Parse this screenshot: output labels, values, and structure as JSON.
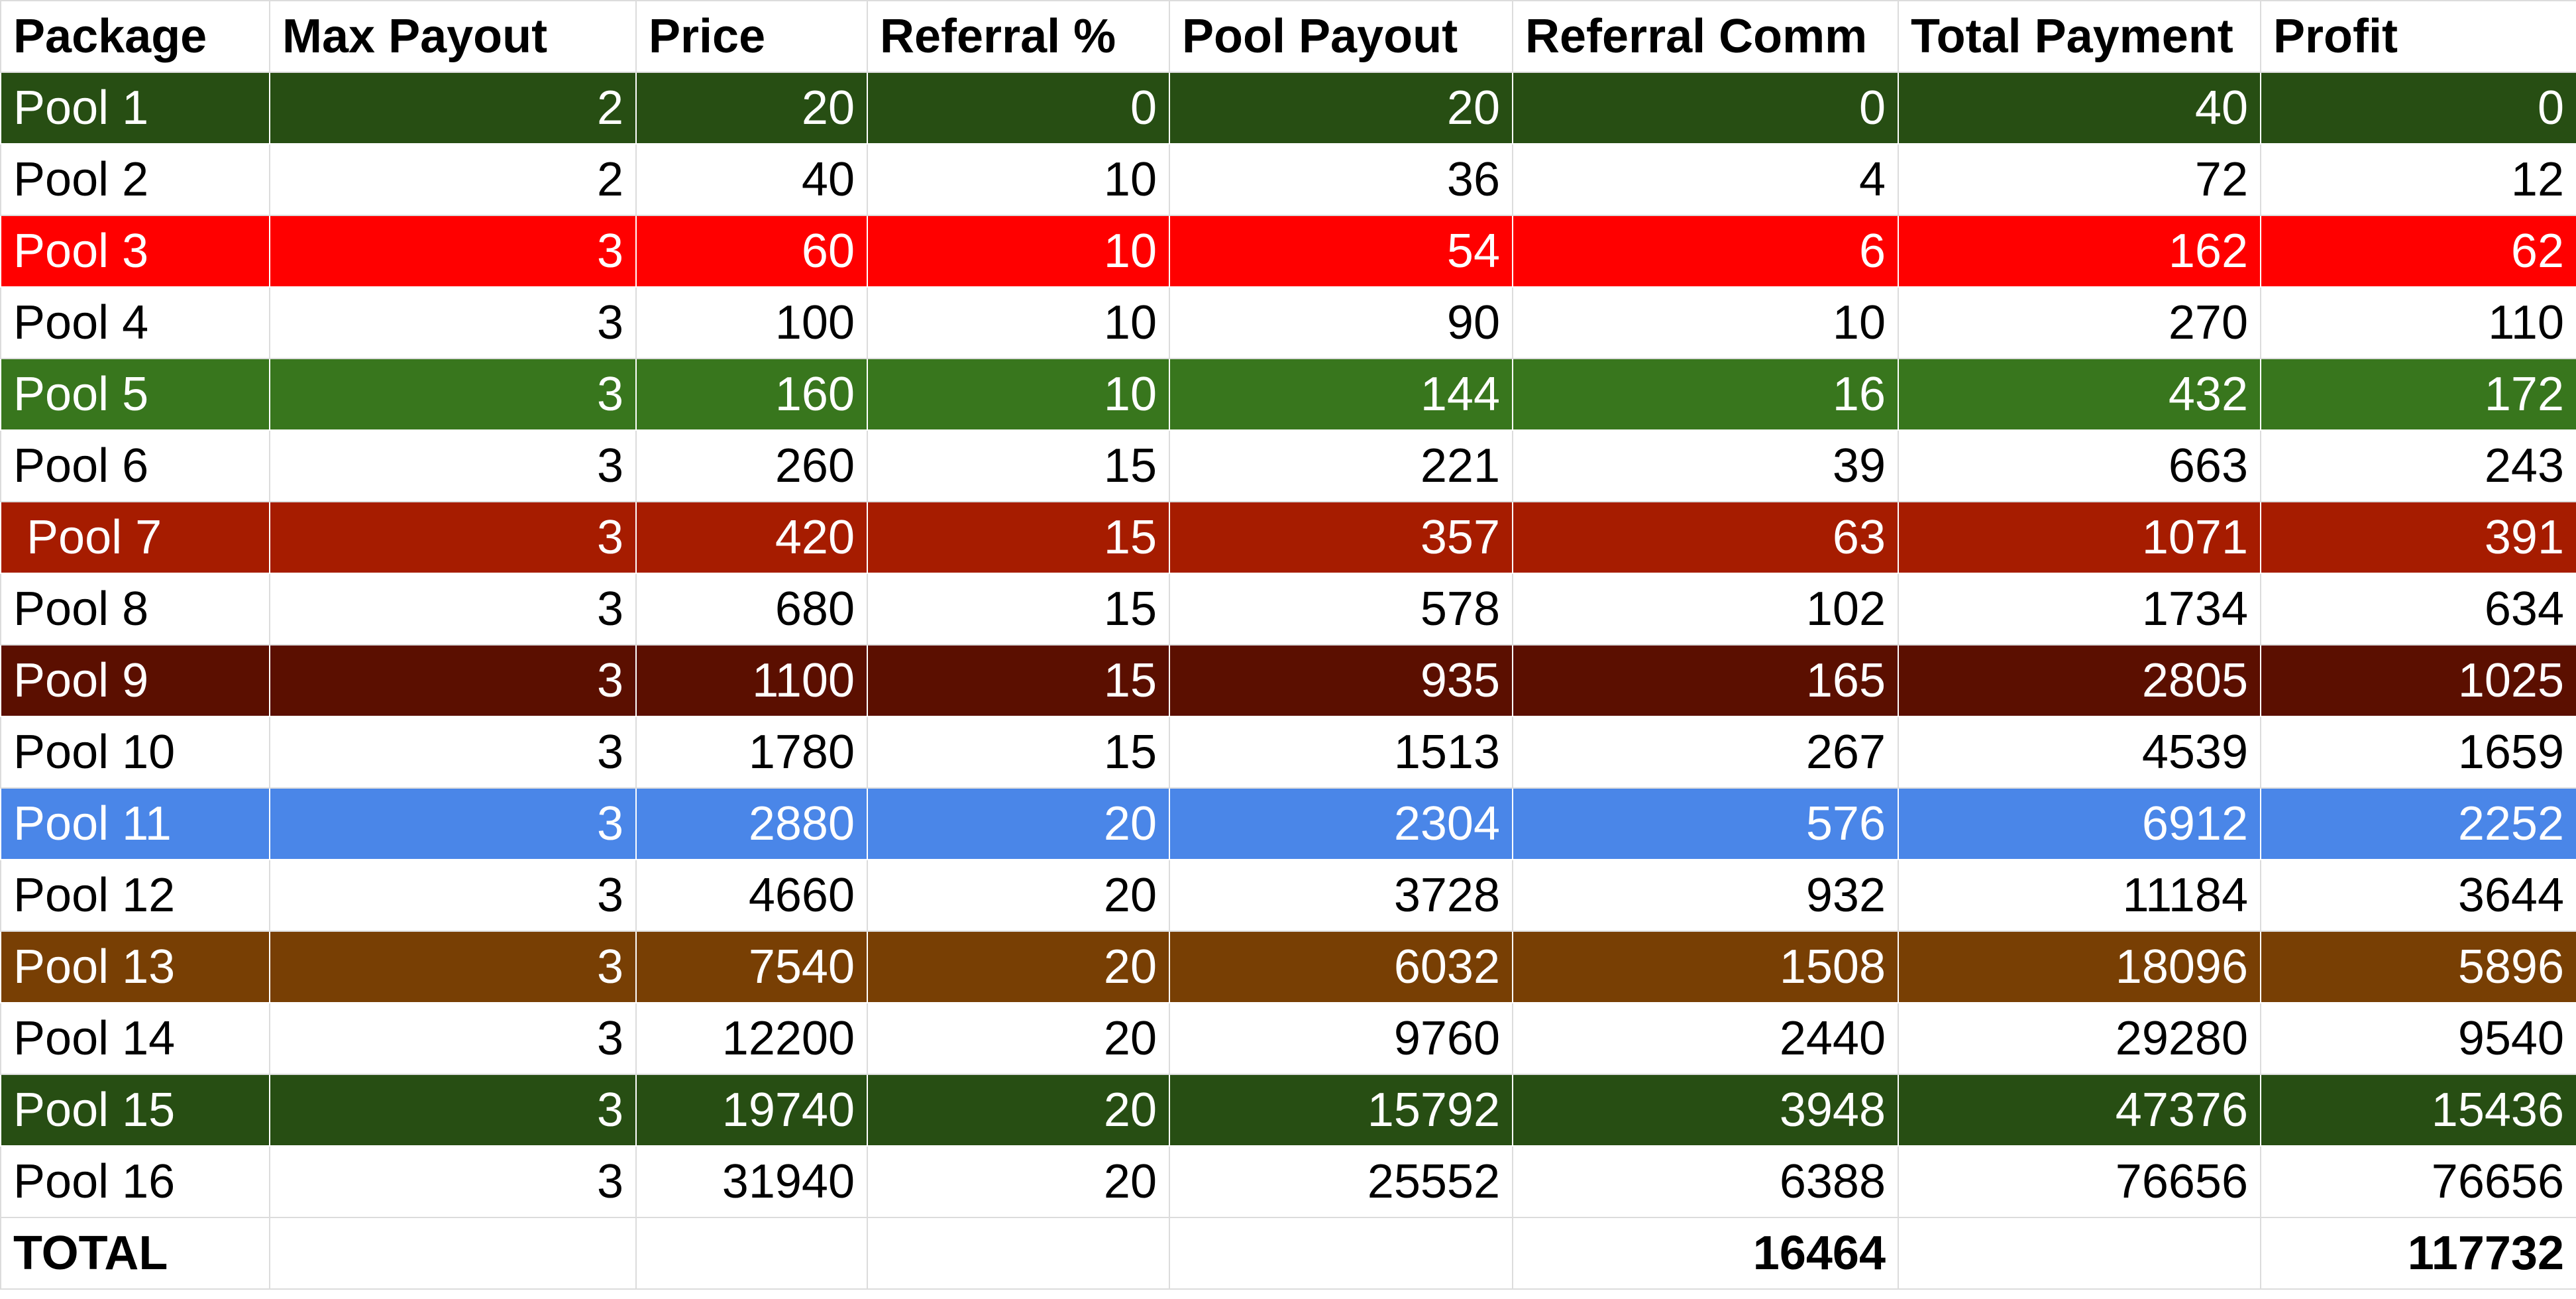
{
  "columns": [
    "Package",
    "Max Payout",
    "Price",
    "Referral %",
    "Pool Payout",
    "Referral Comm",
    "Total Payment",
    "Profit"
  ],
  "rows": [
    {
      "cells": [
        "Pool 1",
        "2",
        "20",
        "0",
        "20",
        "0",
        "40",
        "0"
      ],
      "bg": "#274e13"
    },
    {
      "cells": [
        "Pool 2",
        "2",
        "40",
        "10",
        "36",
        "4",
        "72",
        "12"
      ],
      "bg": "#ffffff"
    },
    {
      "cells": [
        "Pool 3",
        "3",
        "60",
        "10",
        "54",
        "6",
        "162",
        "62"
      ],
      "bg": "#ff0000"
    },
    {
      "cells": [
        "Pool 4",
        "3",
        "100",
        "10",
        "90",
        "10",
        "270",
        "110"
      ],
      "bg": "#ffffff"
    },
    {
      "cells": [
        "Pool 5",
        "3",
        "160",
        "10",
        "144",
        "16",
        "432",
        "172"
      ],
      "bg": "#38761d"
    },
    {
      "cells": [
        "Pool 6",
        "3",
        "260",
        "15",
        "221",
        "39",
        "663",
        "243"
      ],
      "bg": "#ffffff"
    },
    {
      "cells": [
        " Pool 7",
        "3",
        "420",
        "15",
        "357",
        "63",
        "1071",
        "391"
      ],
      "bg": "#a61c00"
    },
    {
      "cells": [
        "Pool 8",
        "3",
        "680",
        "15",
        "578",
        "102",
        "1734",
        "634"
      ],
      "bg": "#ffffff"
    },
    {
      "cells": [
        "Pool 9",
        "3",
        "1100",
        "15",
        "935",
        "165",
        "2805",
        "1025"
      ],
      "bg": "#5b0f00"
    },
    {
      "cells": [
        "Pool 10",
        "3",
        "1780",
        "15",
        "1513",
        "267",
        "4539",
        "1659"
      ],
      "bg": "#ffffff"
    },
    {
      "cells": [
        "Pool 11",
        "3",
        "2880",
        "20",
        "2304",
        "576",
        "6912",
        "2252"
      ],
      "bg": "#4a86e8"
    },
    {
      "cells": [
        "Pool 12",
        "3",
        "4660",
        "20",
        "3728",
        "932",
        "11184",
        "3644"
      ],
      "bg": "#ffffff"
    },
    {
      "cells": [
        "Pool 13",
        "3",
        "7540",
        "20",
        "6032",
        "1508",
        "18096",
        "5896"
      ],
      "bg": "#783f04"
    },
    {
      "cells": [
        "Pool 14",
        "3",
        "12200",
        "20",
        "9760",
        "2440",
        "29280",
        "9540"
      ],
      "bg": "#ffffff"
    },
    {
      "cells": [
        "Pool 15",
        "3",
        "19740",
        "20",
        "15792",
        "3948",
        "47376",
        "15436"
      ],
      "bg": "#274e13"
    },
    {
      "cells": [
        "Pool 16",
        "3",
        "31940",
        "20",
        "25552",
        "6388",
        "76656",
        "76656"
      ],
      "bg": "#ffffff"
    }
  ],
  "total": {
    "label": "TOTAL",
    "cells": [
      "",
      "",
      "",
      "",
      "16464",
      "",
      "117732"
    ]
  }
}
